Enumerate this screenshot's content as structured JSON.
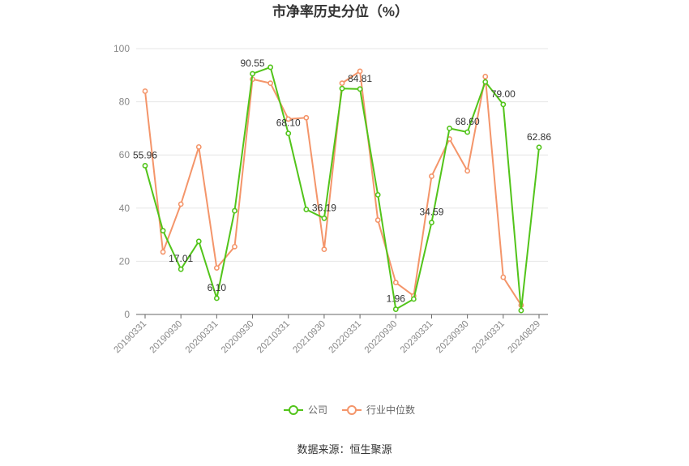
{
  "chart_data": {
    "type": "line",
    "title": "市净率历史分位（%）",
    "source": "数据来源：恒生聚源",
    "ylim": [
      0,
      100
    ],
    "yticks": [
      0,
      20,
      40,
      60,
      80,
      100
    ],
    "grid": true,
    "legend_position": "bottom",
    "x": [
      "20190331",
      "20190630",
      "20190930",
      "20191231",
      "20200331",
      "20200630",
      "20200930",
      "20201231",
      "20210331",
      "20210630",
      "20210930",
      "20211231",
      "20220331",
      "20220630",
      "20220930",
      "20221231",
      "20230331",
      "20230630",
      "20230930",
      "20231231",
      "20240331",
      "20240630",
      "20240829"
    ],
    "x_tick_labels": [
      "20190331",
      "20190930",
      "20200331",
      "20200930",
      "20210331",
      "20210930",
      "20220331",
      "20220930",
      "20230331",
      "20230930",
      "20240331",
      "20240829"
    ],
    "series": [
      {
        "name": "公司",
        "color": "#52c41a",
        "values": [
          55.96,
          31.5,
          17.01,
          27.5,
          6.1,
          39.0,
          90.55,
          93.0,
          68.1,
          39.5,
          36.19,
          85.0,
          84.81,
          45.0,
          1.96,
          5.8,
          34.59,
          70.0,
          68.6,
          87.5,
          79.0,
          1.5,
          62.86
        ]
      },
      {
        "name": "行业中位数",
        "color": "#f4956a",
        "values": [
          84.0,
          23.5,
          41.5,
          63.0,
          17.5,
          25.5,
          88.5,
          87.0,
          73.5,
          74.0,
          24.5,
          87.0,
          91.5,
          35.5,
          12.0,
          7.0,
          52.0,
          66.0,
          54.0,
          89.5,
          14.0,
          3.5,
          null
        ]
      }
    ],
    "data_labels": [
      {
        "index": 0,
        "text": "55.96"
      },
      {
        "index": 2,
        "text": "17.01"
      },
      {
        "index": 4,
        "text": "6.10"
      },
      {
        "index": 6,
        "text": "90.55"
      },
      {
        "index": 8,
        "text": "68.10"
      },
      {
        "index": 10,
        "text": "36.19"
      },
      {
        "index": 12,
        "text": "84.81"
      },
      {
        "index": 14,
        "text": "1.96"
      },
      {
        "index": 16,
        "text": "34.59"
      },
      {
        "index": 18,
        "text": "68.60"
      },
      {
        "index": 20,
        "text": "79.00"
      },
      {
        "index": 22,
        "text": "62.86"
      }
    ]
  }
}
